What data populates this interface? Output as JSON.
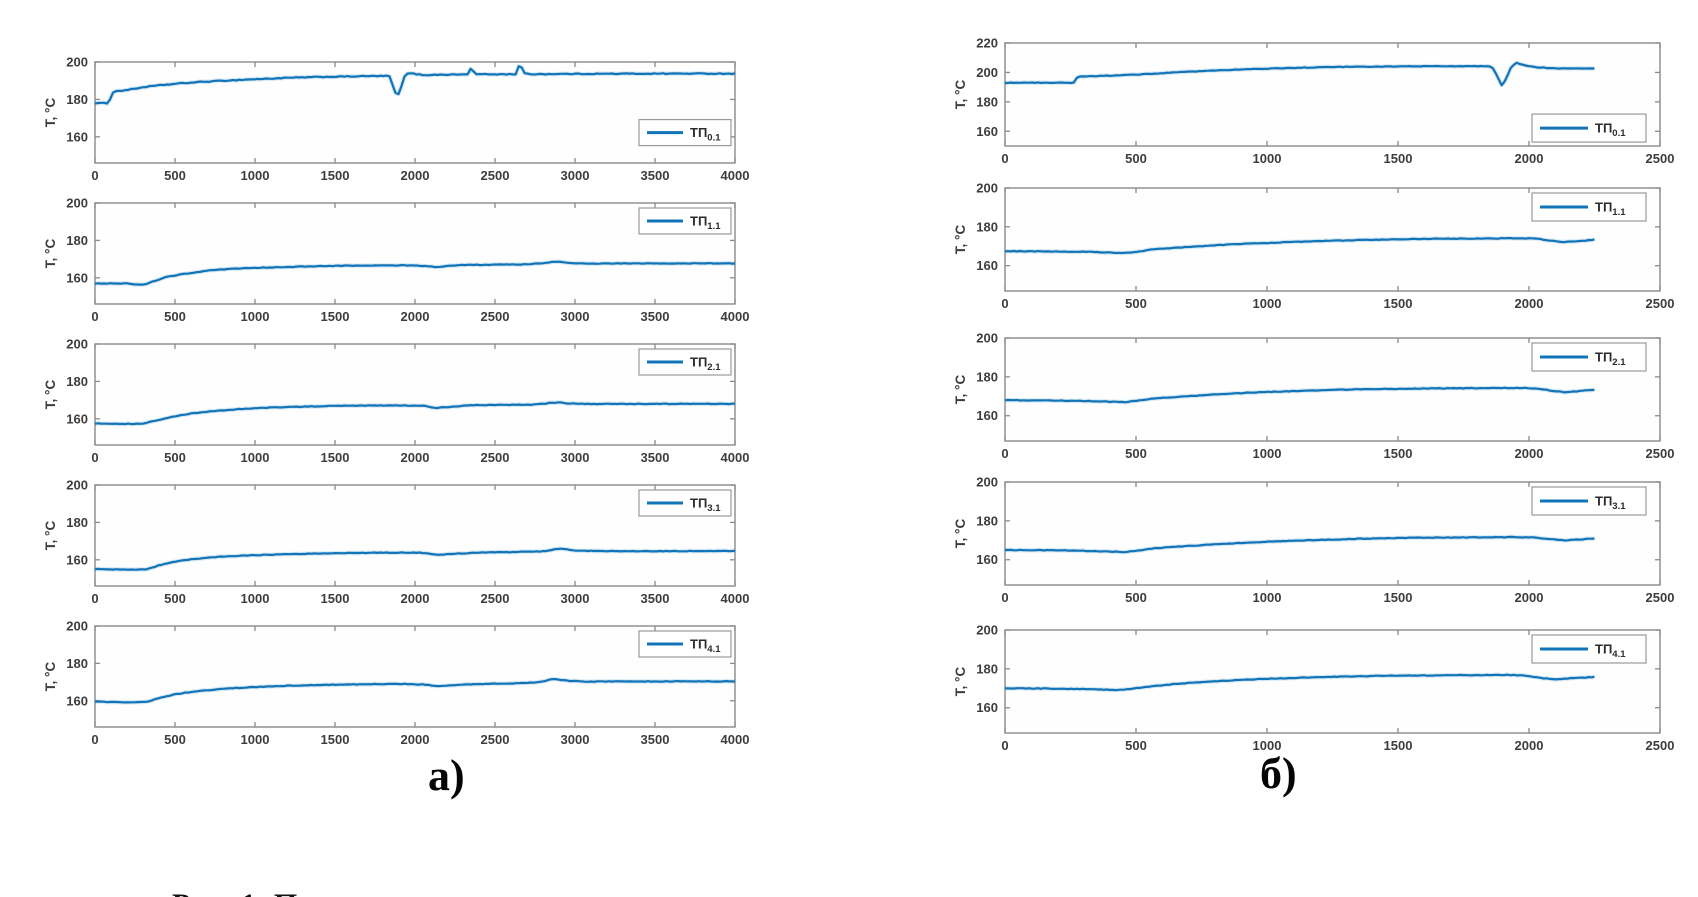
{
  "figure": {
    "panel_a_label": "а)",
    "panel_b_label": "б)",
    "caption_fragment": "Рис. 1. П",
    "ylabel": "T, °C"
  },
  "colors": {
    "line": "#1274B8",
    "axis": "#8A8A8A",
    "text": "#3D3D3D",
    "legend_border": "#9A9A9A",
    "background": "#FFFFFF"
  },
  "chart_data": [
    {
      "id": "a1",
      "panel": "a",
      "row": 0,
      "type": "line",
      "legend_label": {
        "base": "ТП",
        "sub": "0.1"
      },
      "ylabel": "T, °C",
      "xlim": [
        0,
        4000
      ],
      "ylim": [
        146,
        200
      ],
      "xticks": [
        0,
        500,
        1000,
        1500,
        2000,
        2500,
        3000,
        3500,
        4000
      ],
      "yticks": [
        160,
        180,
        200
      ],
      "legend_pos": "bottom-right",
      "legend_frac_y": 0.57,
      "grid": false,
      "noise": 0.45,
      "points": [
        [
          0,
          178
        ],
        [
          90,
          178
        ],
        [
          100,
          183.5
        ],
        [
          140,
          184.5
        ],
        [
          200,
          185
        ],
        [
          300,
          186.5
        ],
        [
          400,
          187.5
        ],
        [
          500,
          188.3
        ],
        [
          650,
          189.3
        ],
        [
          800,
          190
        ],
        [
          1000,
          190.8
        ],
        [
          1200,
          191.5
        ],
        [
          1400,
          192
        ],
        [
          1600,
          192.3
        ],
        [
          1750,
          192.5
        ],
        [
          1840,
          192.5
        ],
        [
          1870,
          185
        ],
        [
          1890,
          181
        ],
        [
          1910,
          186
        ],
        [
          1940,
          193.5
        ],
        [
          1970,
          194
        ],
        [
          2050,
          193
        ],
        [
          2150,
          193.2
        ],
        [
          2250,
          193.3
        ],
        [
          2330,
          193.4
        ],
        [
          2350,
          197
        ],
        [
          2375,
          193.5
        ],
        [
          2500,
          193.4
        ],
        [
          2630,
          193.5
        ],
        [
          2655,
          199.5
        ],
        [
          2680,
          194
        ],
        [
          2710,
          193.5
        ],
        [
          2900,
          193.6
        ],
        [
          3200,
          193.7
        ],
        [
          3500,
          193.8
        ],
        [
          3800,
          193.8
        ],
        [
          4000,
          193.8
        ]
      ]
    },
    {
      "id": "a2",
      "panel": "a",
      "row": 1,
      "type": "line",
      "legend_label": {
        "base": "ТП",
        "sub": "1.1"
      },
      "ylabel": "T, °C",
      "xlim": [
        0,
        4000
      ],
      "ylim": [
        146,
        200
      ],
      "xticks": [
        0,
        500,
        1000,
        1500,
        2000,
        2500,
        3000,
        3500,
        4000
      ],
      "yticks": [
        160,
        180,
        200
      ],
      "legend_pos": "top-right",
      "legend_frac_y": null,
      "grid": false,
      "noise": 0.3,
      "points": [
        [
          0,
          157
        ],
        [
          200,
          157
        ],
        [
          260,
          156.3
        ],
        [
          310,
          156.5
        ],
        [
          360,
          158
        ],
        [
          450,
          160.5
        ],
        [
          550,
          162
        ],
        [
          700,
          163.8
        ],
        [
          850,
          164.8
        ],
        [
          1000,
          165.3
        ],
        [
          1200,
          165.8
        ],
        [
          1400,
          166.2
        ],
        [
          1600,
          166.5
        ],
        [
          1800,
          166.6
        ],
        [
          2000,
          166.7
        ],
        [
          2080,
          166.2
        ],
        [
          2130,
          165.8
        ],
        [
          2210,
          166.3
        ],
        [
          2300,
          166.9
        ],
        [
          2500,
          167
        ],
        [
          2700,
          167.2
        ],
        [
          2820,
          168
        ],
        [
          2880,
          168.7
        ],
        [
          2950,
          168
        ],
        [
          3060,
          167.6
        ],
        [
          3300,
          167.7
        ],
        [
          3600,
          167.7
        ],
        [
          4000,
          167.7
        ]
      ]
    },
    {
      "id": "a3",
      "panel": "a",
      "row": 2,
      "type": "line",
      "legend_label": {
        "base": "ТП",
        "sub": "2.1"
      },
      "ylabel": "T, °C",
      "xlim": [
        0,
        4000
      ],
      "ylim": [
        146,
        200
      ],
      "xticks": [
        0,
        500,
        1000,
        1500,
        2000,
        2500,
        3000,
        3500,
        4000
      ],
      "yticks": [
        160,
        180,
        200
      ],
      "legend_pos": "top-right",
      "legend_frac_y": null,
      "grid": false,
      "noise": 0.3,
      "points": [
        [
          0,
          157.5
        ],
        [
          250,
          157.3
        ],
        [
          305,
          157.5
        ],
        [
          380,
          159
        ],
        [
          480,
          161
        ],
        [
          600,
          162.8
        ],
        [
          750,
          164.2
        ],
        [
          900,
          165.2
        ],
        [
          1100,
          166
        ],
        [
          1300,
          166.5
        ],
        [
          1500,
          166.9
        ],
        [
          1700,
          167.1
        ],
        [
          1900,
          167.2
        ],
        [
          2050,
          167
        ],
        [
          2130,
          165.8
        ],
        [
          2230,
          166.5
        ],
        [
          2360,
          167.3
        ],
        [
          2550,
          167.4
        ],
        [
          2750,
          167.6
        ],
        [
          2830,
          168.3
        ],
        [
          2890,
          168.8
        ],
        [
          2960,
          168.2
        ],
        [
          3100,
          167.9
        ],
        [
          3400,
          168
        ],
        [
          3700,
          168
        ],
        [
          4000,
          168
        ]
      ]
    },
    {
      "id": "a4",
      "panel": "a",
      "row": 3,
      "type": "line",
      "legend_label": {
        "base": "ТП",
        "sub": "3.1"
      },
      "ylabel": "T, °C",
      "xlim": [
        0,
        4000
      ],
      "ylim": [
        146,
        200
      ],
      "xticks": [
        0,
        500,
        1000,
        1500,
        2000,
        2500,
        3000,
        3500,
        4000
      ],
      "yticks": [
        160,
        180,
        200
      ],
      "legend_pos": "top-right",
      "legend_frac_y": null,
      "grid": false,
      "noise": 0.3,
      "points": [
        [
          0,
          155
        ],
        [
          260,
          154.7
        ],
        [
          325,
          155
        ],
        [
          400,
          157
        ],
        [
          500,
          159
        ],
        [
          620,
          160.5
        ],
        [
          780,
          161.6
        ],
        [
          950,
          162.3
        ],
        [
          1150,
          162.9
        ],
        [
          1350,
          163.3
        ],
        [
          1550,
          163.6
        ],
        [
          1750,
          163.8
        ],
        [
          1950,
          163.9
        ],
        [
          2060,
          163.7
        ],
        [
          2140,
          162.7
        ],
        [
          2255,
          163.3
        ],
        [
          2400,
          163.9
        ],
        [
          2600,
          164.1
        ],
        [
          2800,
          164.5
        ],
        [
          2865,
          165.6
        ],
        [
          2920,
          165.9
        ],
        [
          3000,
          165
        ],
        [
          3160,
          164.6
        ],
        [
          3450,
          164.6
        ],
        [
          3750,
          164.7
        ],
        [
          4000,
          164.7
        ]
      ]
    },
    {
      "id": "a5",
      "panel": "a",
      "row": 4,
      "type": "line",
      "legend_label": {
        "base": "ТП",
        "sub": "4.1"
      },
      "ylabel": "T, °C",
      "xlim": [
        0,
        4000
      ],
      "ylim": [
        146,
        200
      ],
      "xticks": [
        0,
        500,
        1000,
        1500,
        2000,
        2500,
        3000,
        3500,
        4000
      ],
      "yticks": [
        160,
        180,
        200
      ],
      "legend_pos": "top-right",
      "legend_frac_y": null,
      "grid": false,
      "noise": 0.3,
      "points": [
        [
          0,
          159.5
        ],
        [
          260,
          159.2
        ],
        [
          325,
          159.5
        ],
        [
          400,
          161.5
        ],
        [
          500,
          163.5
        ],
        [
          620,
          165
        ],
        [
          780,
          166.3
        ],
        [
          950,
          167.2
        ],
        [
          1150,
          167.9
        ],
        [
          1350,
          168.4
        ],
        [
          1550,
          168.7
        ],
        [
          1750,
          168.9
        ],
        [
          1950,
          169
        ],
        [
          2060,
          168.7
        ],
        [
          2140,
          167.8
        ],
        [
          2255,
          168.4
        ],
        [
          2400,
          169
        ],
        [
          2600,
          169.3
        ],
        [
          2750,
          169.8
        ],
        [
          2820,
          170.8
        ],
        [
          2865,
          171.7
        ],
        [
          2940,
          170.8
        ],
        [
          3060,
          170.3
        ],
        [
          3300,
          170.4
        ],
        [
          3650,
          170.4
        ],
        [
          4000,
          170.4
        ]
      ]
    },
    {
      "id": "b1",
      "panel": "b",
      "row": 0,
      "type": "line",
      "legend_label": {
        "base": "ТП",
        "sub": "0.1"
      },
      "ylabel": "T, °C",
      "xlim": [
        0,
        2500
      ],
      "ylim": [
        150,
        220
      ],
      "xticks": [
        0,
        500,
        1000,
        1500,
        2000,
        2500
      ],
      "yticks": [
        160,
        180,
        200,
        220
      ],
      "legend_pos": "bottom-right",
      "legend_frac_y": 0.69,
      "grid": false,
      "noise": 0.4,
      "points": [
        [
          0,
          193
        ],
        [
          150,
          193
        ],
        [
          262,
          193
        ],
        [
          276,
          197
        ],
        [
          330,
          197.5
        ],
        [
          400,
          197.8
        ],
        [
          500,
          198.5
        ],
        [
          600,
          199.5
        ],
        [
          700,
          200.5
        ],
        [
          800,
          201.3
        ],
        [
          900,
          202
        ],
        [
          1000,
          202.6
        ],
        [
          1100,
          203.1
        ],
        [
          1200,
          203.5
        ],
        [
          1350,
          203.9
        ],
        [
          1500,
          204.1
        ],
        [
          1650,
          204.3
        ],
        [
          1800,
          204.3
        ],
        [
          1858,
          204
        ],
        [
          1880,
          197
        ],
        [
          1895,
          191
        ],
        [
          1912,
          195
        ],
        [
          1932,
          204
        ],
        [
          1952,
          206.5
        ],
        [
          1980,
          205
        ],
        [
          2025,
          203.5
        ],
        [
          2100,
          202.8
        ],
        [
          2180,
          202.6
        ],
        [
          2250,
          202.8
        ]
      ]
    },
    {
      "id": "b2",
      "panel": "b",
      "row": 1,
      "type": "line",
      "legend_label": {
        "base": "ТП",
        "sub": "1.1"
      },
      "ylabel": "T, °C",
      "xlim": [
        0,
        2500
      ],
      "ylim": [
        147,
        200
      ],
      "xticks": [
        0,
        500,
        1000,
        1500,
        2000,
        2500
      ],
      "yticks": [
        160,
        180,
        200
      ],
      "legend_pos": "top-right",
      "legend_frac_y": null,
      "grid": false,
      "noise": 0.3,
      "points": [
        [
          0,
          167.5
        ],
        [
          150,
          167.4
        ],
        [
          300,
          167.2
        ],
        [
          400,
          166.8
        ],
        [
          455,
          166.6
        ],
        [
          510,
          167.3
        ],
        [
          560,
          168.3
        ],
        [
          660,
          169.3
        ],
        [
          760,
          170.2
        ],
        [
          900,
          171.2
        ],
        [
          1050,
          172
        ],
        [
          1200,
          172.7
        ],
        [
          1350,
          173.2
        ],
        [
          1500,
          173.6
        ],
        [
          1650,
          173.9
        ],
        [
          1800,
          174
        ],
        [
          1950,
          174.1
        ],
        [
          2025,
          174
        ],
        [
          2085,
          172.8
        ],
        [
          2135,
          172.2
        ],
        [
          2185,
          172.6
        ],
        [
          2250,
          173.4
        ]
      ]
    },
    {
      "id": "b3",
      "panel": "b",
      "row": 2,
      "type": "line",
      "legend_label": {
        "base": "ТП",
        "sub": "2.1"
      },
      "ylabel": "T, °C",
      "xlim": [
        0,
        2500
      ],
      "ylim": [
        147,
        200
      ],
      "xticks": [
        0,
        500,
        1000,
        1500,
        2000,
        2500
      ],
      "yticks": [
        160,
        180,
        200
      ],
      "legend_pos": "top-right",
      "legend_frac_y": null,
      "grid": false,
      "noise": 0.3,
      "points": [
        [
          0,
          168
        ],
        [
          150,
          167.9
        ],
        [
          300,
          167.6
        ],
        [
          400,
          167.2
        ],
        [
          455,
          167
        ],
        [
          510,
          167.8
        ],
        [
          565,
          168.8
        ],
        [
          665,
          169.8
        ],
        [
          785,
          170.8
        ],
        [
          925,
          171.8
        ],
        [
          1065,
          172.5
        ],
        [
          1200,
          173.1
        ],
        [
          1350,
          173.6
        ],
        [
          1500,
          173.9
        ],
        [
          1650,
          174.1
        ],
        [
          1800,
          174.2
        ],
        [
          1950,
          174.3
        ],
        [
          2030,
          174.1
        ],
        [
          2090,
          172.8
        ],
        [
          2140,
          172.1
        ],
        [
          2190,
          172.6
        ],
        [
          2250,
          173.4
        ]
      ]
    },
    {
      "id": "b4",
      "panel": "b",
      "row": 3,
      "type": "line",
      "legend_label": {
        "base": "ТП",
        "sub": "3.1"
      },
      "ylabel": "T, °C",
      "xlim": [
        0,
        2500
      ],
      "ylim": [
        147,
        200
      ],
      "xticks": [
        0,
        500,
        1000,
        1500,
        2000,
        2500
      ],
      "yticks": [
        160,
        180,
        200
      ],
      "legend_pos": "top-right",
      "legend_frac_y": null,
      "grid": false,
      "noise": 0.3,
      "points": [
        [
          0,
          165
        ],
        [
          150,
          164.9
        ],
        [
          300,
          164.6
        ],
        [
          400,
          164.2
        ],
        [
          455,
          164
        ],
        [
          510,
          164.8
        ],
        [
          565,
          165.8
        ],
        [
          665,
          166.8
        ],
        [
          785,
          167.8
        ],
        [
          925,
          168.8
        ],
        [
          1065,
          169.6
        ],
        [
          1200,
          170.2
        ],
        [
          1350,
          170.8
        ],
        [
          1500,
          171.2
        ],
        [
          1650,
          171.4
        ],
        [
          1800,
          171.5
        ],
        [
          1950,
          171.6
        ],
        [
          2030,
          171.4
        ],
        [
          2090,
          170.4
        ],
        [
          2140,
          169.9
        ],
        [
          2190,
          170.4
        ],
        [
          2250,
          171
        ]
      ]
    },
    {
      "id": "b5",
      "panel": "b",
      "row": 4,
      "type": "line",
      "legend_label": {
        "base": "ТП",
        "sub": "4.1"
      },
      "ylabel": "T, °C",
      "xlim": [
        0,
        2500
      ],
      "ylim": [
        147,
        200
      ],
      "xticks": [
        0,
        500,
        1000,
        1500,
        2000,
        2500
      ],
      "yticks": [
        160,
        180,
        200
      ],
      "legend_pos": "top-right",
      "legend_frac_y": null,
      "grid": false,
      "noise": 0.3,
      "points": [
        [
          0,
          170
        ],
        [
          150,
          169.9
        ],
        [
          300,
          169.6
        ],
        [
          380,
          169.3
        ],
        [
          435,
          169.1
        ],
        [
          485,
          169.8
        ],
        [
          555,
          171
        ],
        [
          655,
          172.3
        ],
        [
          785,
          173.5
        ],
        [
          925,
          174.5
        ],
        [
          1065,
          175.2
        ],
        [
          1200,
          175.8
        ],
        [
          1350,
          176.2
        ],
        [
          1500,
          176.5
        ],
        [
          1650,
          176.7
        ],
        [
          1800,
          176.8
        ],
        [
          1900,
          176.9
        ],
        [
          1975,
          176.7
        ],
        [
          2045,
          175.3
        ],
        [
          2105,
          174.7
        ],
        [
          2165,
          175.2
        ],
        [
          2250,
          175.8
        ]
      ]
    }
  ]
}
